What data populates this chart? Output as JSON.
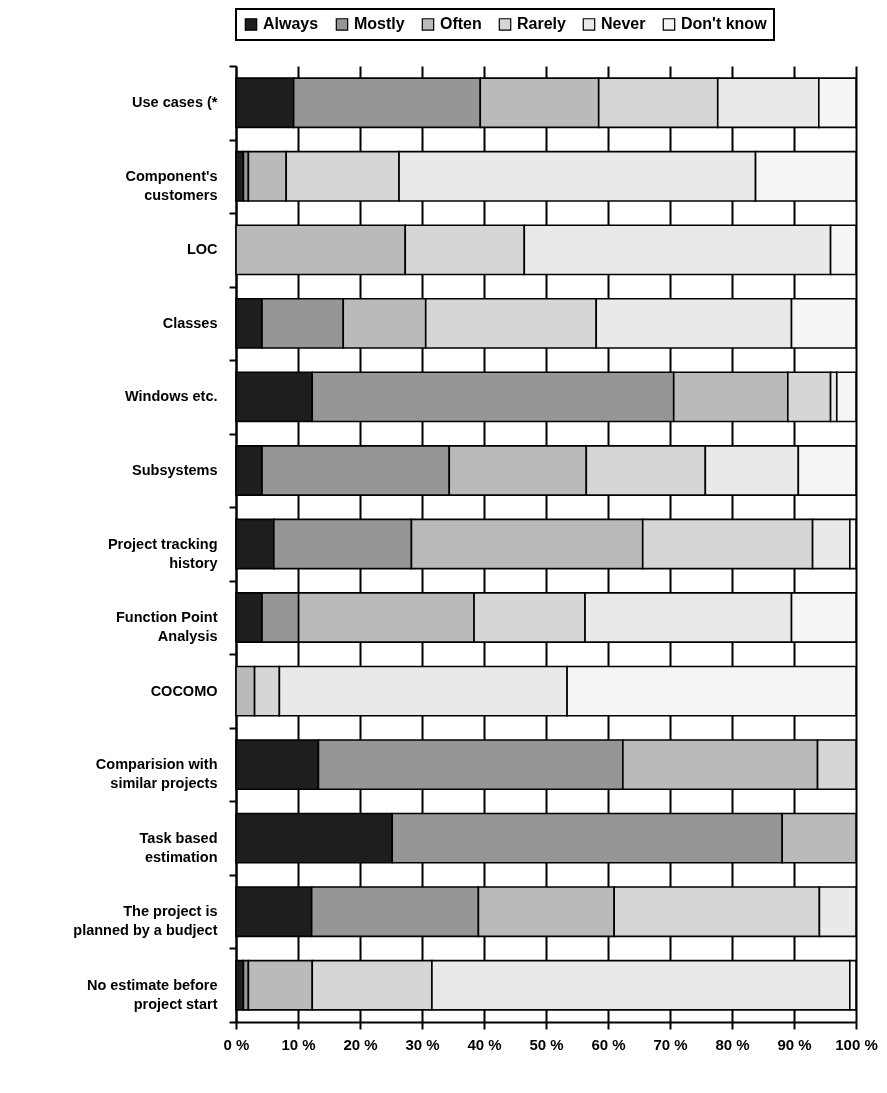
{
  "chart_data": {
    "type": "bar",
    "orientation": "horizontal",
    "stacked": true,
    "categories": [
      "Use cases (*",
      "Component's customers",
      "LOC",
      "Classes",
      "Windows etc.",
      "Subsystems",
      "Project tracking history",
      "Function Point Analysis",
      "COCOMO",
      "Comparision with similar projects",
      "Task based estimation",
      "The project is planned by a budject",
      "No estimate before project start"
    ],
    "series": [
      {
        "name": "Always",
        "color": "#1e1e1e",
        "values": [
          9.3,
          1.2,
          null,
          4.2,
          12.3,
          4.2,
          6.1,
          4.2,
          null,
          13.3,
          25.2,
          12.2,
          1.2
        ]
      },
      {
        "name": "Mostly",
        "color": "#969696",
        "values": [
          30.1,
          0.8,
          null,
          13.1,
          58.3,
          30.2,
          22.2,
          5.9,
          null,
          49.1,
          62.9,
          26.9,
          0.8
        ]
      },
      {
        "name": "Often",
        "color": "#bababa",
        "values": [
          19.1,
          6.1,
          27.3,
          13.3,
          18.4,
          22.1,
          37.3,
          28.3,
          3.0,
          31.4,
          11.9,
          21.9,
          10.3
        ]
      },
      {
        "name": "Rarely",
        "color": "#d6d6d6",
        "values": [
          19.2,
          18.2,
          19.2,
          27.5,
          6.9,
          19.2,
          27.4,
          17.9,
          4.0,
          6.2,
          null,
          33.1,
          19.3
        ]
      },
      {
        "name": "Never",
        "color": "#e9e9e9",
        "values": [
          16.3,
          57.5,
          49.4,
          31.5,
          1.0,
          15.0,
          6.0,
          33.3,
          46.4,
          null,
          null,
          5.9,
          67.4
        ]
      },
      {
        "name": "Don't know",
        "color": "#f5f5f5",
        "values": [
          6.0,
          16.2,
          4.1,
          10.4,
          3.1,
          9.3,
          1.0,
          10.4,
          46.6,
          null,
          null,
          null,
          1.0
        ]
      }
    ],
    "xlim": [
      0,
      100
    ],
    "xticks": [
      {
        "value": 0,
        "label": "0 %"
      },
      {
        "value": 10,
        "label": "10 %"
      },
      {
        "value": 20,
        "label": "20 %"
      },
      {
        "value": 30,
        "label": "30 %"
      },
      {
        "value": 40,
        "label": "40 %"
      },
      {
        "value": 50,
        "label": "50 %"
      },
      {
        "value": 60,
        "label": "60 %"
      },
      {
        "value": 70,
        "label": "70 %"
      },
      {
        "value": 80,
        "label": "80 %"
      },
      {
        "value": 90,
        "label": "90 %"
      },
      {
        "value": 100,
        "label": "100 %"
      }
    ],
    "grid": "x",
    "legend": "top"
  }
}
